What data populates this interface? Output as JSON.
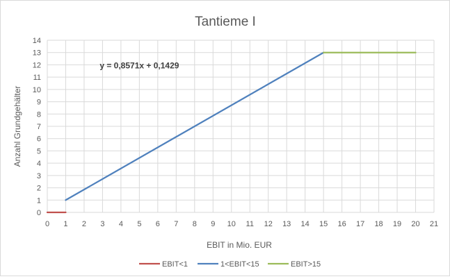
{
  "chart_data": {
    "type": "line",
    "title": "Tantieme I",
    "xlabel": "EBIT in Mio. EUR",
    "ylabel": "Anzahl Grundgehälter",
    "xlim": [
      0,
      21
    ],
    "ylim": [
      0,
      14
    ],
    "x_ticks": [
      0,
      1,
      2,
      3,
      4,
      5,
      6,
      7,
      8,
      9,
      10,
      11,
      12,
      13,
      14,
      15,
      16,
      17,
      18,
      19,
      20,
      21
    ],
    "y_ticks": [
      0,
      1,
      2,
      3,
      4,
      5,
      6,
      7,
      8,
      9,
      10,
      11,
      12,
      13,
      14
    ],
    "grid": true,
    "legend_position": "bottom",
    "series": [
      {
        "name": "EBIT<1",
        "color": "#c0504d",
        "points": [
          [
            0,
            0
          ],
          [
            1,
            0
          ]
        ]
      },
      {
        "name": "1<EBIT<15",
        "color": "#4f81bd",
        "points": [
          [
            1,
            1
          ],
          [
            15,
            13
          ]
        ]
      },
      {
        "name": "EBIT>15",
        "color": "#9bbb59",
        "points": [
          [
            15,
            13
          ],
          [
            20,
            13
          ]
        ]
      }
    ],
    "annotations": [
      {
        "text": "y = 0,8571x + 0,1429",
        "x": 5,
        "y": 11.7
      }
    ]
  }
}
